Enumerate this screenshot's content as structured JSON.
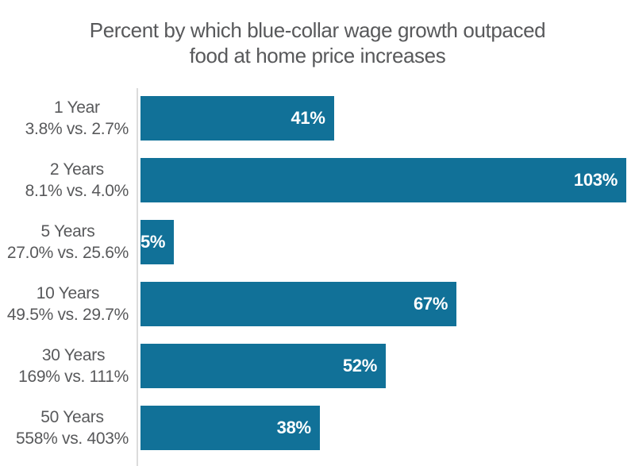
{
  "title": {
    "line1": "Percent by which blue-collar wage growth outpaced",
    "line2": "food at home price increases"
  },
  "colors": {
    "bar": "#117198",
    "text": "#58595b",
    "value_text": "#ffffff",
    "axis_line": "#dcdcdc",
    "background": "#ffffff"
  },
  "chart_data": {
    "type": "bar",
    "orientation": "horizontal",
    "title": "Percent by which blue-collar wage growth outpaced food at home price increases",
    "categories": [
      "1 Year",
      "2 Years",
      "5 Years",
      "10 Years",
      "30 Years",
      "50 Years"
    ],
    "values": [
      41,
      103,
      5,
      67,
      52,
      38
    ],
    "xlim": [
      0,
      103
    ],
    "grid": false,
    "legend": null,
    "rows": [
      {
        "category": "1 Year",
        "comparison": "3.8% vs. 2.7%",
        "value": 41,
        "value_label": "41%"
      },
      {
        "category": "2 Years",
        "comparison": "8.1% vs. 4.0%",
        "value": 103,
        "value_label": "103%"
      },
      {
        "category": "5 Years",
        "comparison": "27.0% vs. 25.6%",
        "value": 5,
        "value_label": "5%"
      },
      {
        "category": "10 Years",
        "comparison": "49.5% vs. 29.7%",
        "value": 67,
        "value_label": "67%"
      },
      {
        "category": "30 Years",
        "comparison": "169% vs. 111%",
        "value": 52,
        "value_label": "52%"
      },
      {
        "category": "50 Years",
        "comparison": "558% vs. 403%",
        "value": 38,
        "value_label": "38%"
      }
    ]
  }
}
